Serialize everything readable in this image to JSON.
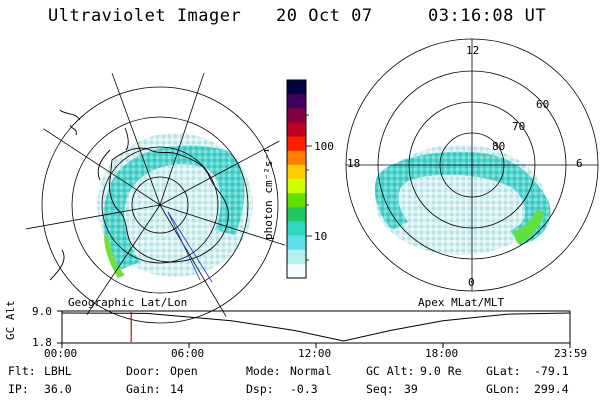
{
  "header": {
    "instrument": "Ultraviolet Imager",
    "date": "20 Oct 07",
    "time": "03:16:08 UT"
  },
  "colorbar": {
    "unit": "photon cm⁻²s⁻¹",
    "tick_labels": [
      "100",
      "10"
    ],
    "colors": [
      "#000040",
      "#400060",
      "#800040",
      "#c00020",
      "#ff2000",
      "#ff8000",
      "#ffd000",
      "#d0ff00",
      "#60e000",
      "#20c860",
      "#30d8c0",
      "#60e0e8",
      "#b0f0f0",
      "#f0ffff"
    ]
  },
  "left_map": {
    "caption": "Geographic Lat/Lon",
    "emission_color": "#40d8d0",
    "land_outline_color": "#000000"
  },
  "right_map": {
    "caption": "Apex MLat/MLT",
    "mlt_labels": [
      "12",
      "18",
      "6",
      "0"
    ],
    "mlat_labels": [
      "60",
      "70",
      "80"
    ]
  },
  "timeline": {
    "ylabel": "GC Alt",
    "y_ticks": [
      "9.0",
      "1.8"
    ],
    "x_ticks": [
      "00:00",
      "06:00",
      "12:00",
      "18:00",
      "23:59"
    ],
    "marker_color": "#cc0000",
    "marker_time_hours": 3.27,
    "orbit_points": [
      [
        0,
        9.0
      ],
      [
        4,
        8.9
      ],
      [
        8,
        7.0
      ],
      [
        11,
        4.5
      ],
      [
        13.3,
        1.8
      ],
      [
        15.5,
        4.5
      ],
      [
        18,
        7.0
      ],
      [
        21,
        8.7
      ],
      [
        23.98,
        9.0
      ]
    ]
  },
  "info": {
    "filter_label": "Flt:",
    "filter": "LBHL",
    "ip_label": "IP:",
    "ip": "36.0",
    "door_label": "Door:",
    "door": "Open",
    "gain_label": "Gain:",
    "gain": "14",
    "mode_label": "Mode:",
    "mode": "Normal",
    "dsp_label": "Dsp:",
    "dsp": "-0.3",
    "gcalt_label": "GC Alt:",
    "gcalt": "9.0 Re",
    "seq_label": "Seq:",
    "seq": "39",
    "glat_label": "GLat:",
    "glat": "-79.1",
    "glon_label": "GLon:",
    "glon": "299.4"
  }
}
